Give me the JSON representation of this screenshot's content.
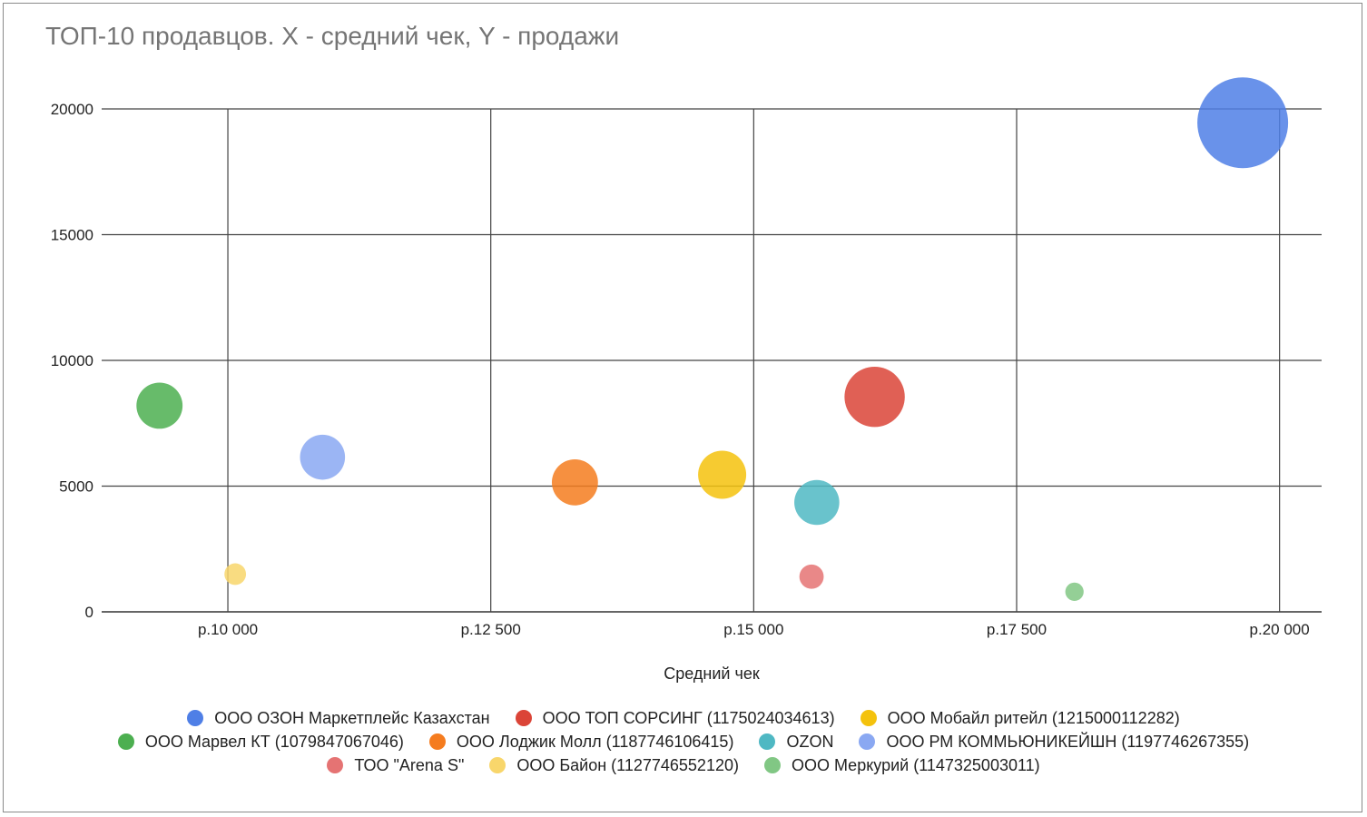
{
  "chart_data": {
    "type": "bubble",
    "title": "ТОП-10 продавцов. X - средний чек, Y - продажи",
    "xlabel": "Средний чек",
    "ylabel": "",
    "xlim": [
      8800,
      20400
    ],
    "ylim": [
      0,
      20000
    ],
    "x_ticks": [
      {
        "value": 10000,
        "label": "р.10 000"
      },
      {
        "value": 12500,
        "label": "р.12 500"
      },
      {
        "value": 15000,
        "label": "р.15 000"
      },
      {
        "value": 17500,
        "label": "р.17 500"
      },
      {
        "value": 20000,
        "label": "р.20 000"
      }
    ],
    "y_ticks": [
      {
        "value": 0,
        "label": "0"
      },
      {
        "value": 5000,
        "label": "5000"
      },
      {
        "value": 10000,
        "label": "10000"
      },
      {
        "value": 15000,
        "label": "15000"
      },
      {
        "value": 20000,
        "label": "20000"
      }
    ],
    "grid": true,
    "legend_position": "bottom",
    "series": [
      {
        "name": "ООО ОЗОН Маркетплейс Казахстан",
        "x": 19650,
        "y": 19450,
        "size": 19450,
        "color": "#4f7fe6"
      },
      {
        "name": "ООО ТОП СОРСИНГ (1175024034613)",
        "x": 16150,
        "y": 8550,
        "size": 8550,
        "color": "#db4437"
      },
      {
        "name": "ООО Мобайл ритейл (1215000112282)",
        "x": 14700,
        "y": 5450,
        "size": 5450,
        "color": "#f4c20d"
      },
      {
        "name": "ООО Марвел КТ (1079847067046)",
        "x": 9350,
        "y": 8200,
        "size": 5000,
        "color": "#4caf50"
      },
      {
        "name": "ООО Лоджик Молл (1187746106415)",
        "x": 13300,
        "y": 5150,
        "size": 5000,
        "color": "#f57c1f"
      },
      {
        "name": "OZON",
        "x": 15600,
        "y": 4350,
        "size": 4800,
        "color": "#4fb8c3"
      },
      {
        "name": "ООО РМ КОММЬЮНИКЕЙШН (1197746267355)",
        "x": 10900,
        "y": 6150,
        "size": 4800,
        "color": "#8aa8f2"
      },
      {
        "name": "ТОО \"Arena S\"",
        "x": 15550,
        "y": 1400,
        "size": 1400,
        "color": "#e57373"
      },
      {
        "name": "ООО Байон (1127746552120)",
        "x": 10070,
        "y": 1500,
        "size": 1100,
        "color": "#f8d66b"
      },
      {
        "name": "ООО Меркурий (1147325003011)",
        "x": 18050,
        "y": 800,
        "size": 800,
        "color": "#81c784"
      }
    ]
  },
  "legend_rows": [
    [
      0,
      1,
      2
    ],
    [
      3,
      4,
      5,
      6
    ],
    [
      7,
      8,
      9
    ]
  ]
}
